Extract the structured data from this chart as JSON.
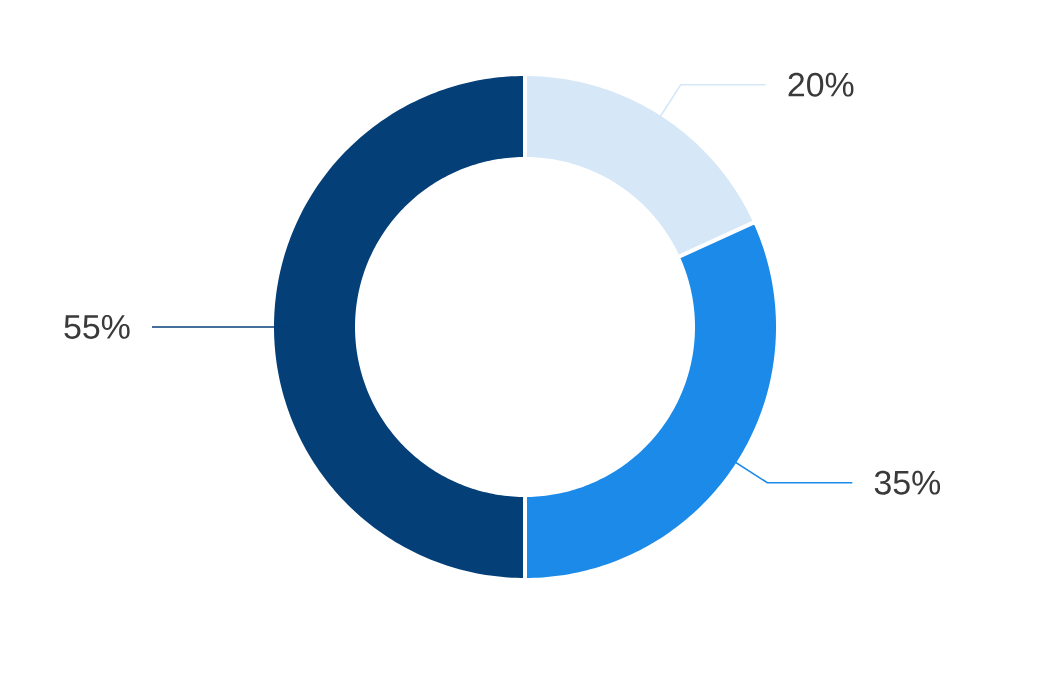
{
  "chart_data": {
    "type": "donut",
    "categories": [
      null,
      null,
      null
    ],
    "values": [
      20,
      35,
      55
    ],
    "colors": [
      "#d6e8f7",
      "#1b8ae8",
      "#053f78"
    ],
    "value_labels": [
      "20%",
      "35%",
      "55%"
    ]
  }
}
